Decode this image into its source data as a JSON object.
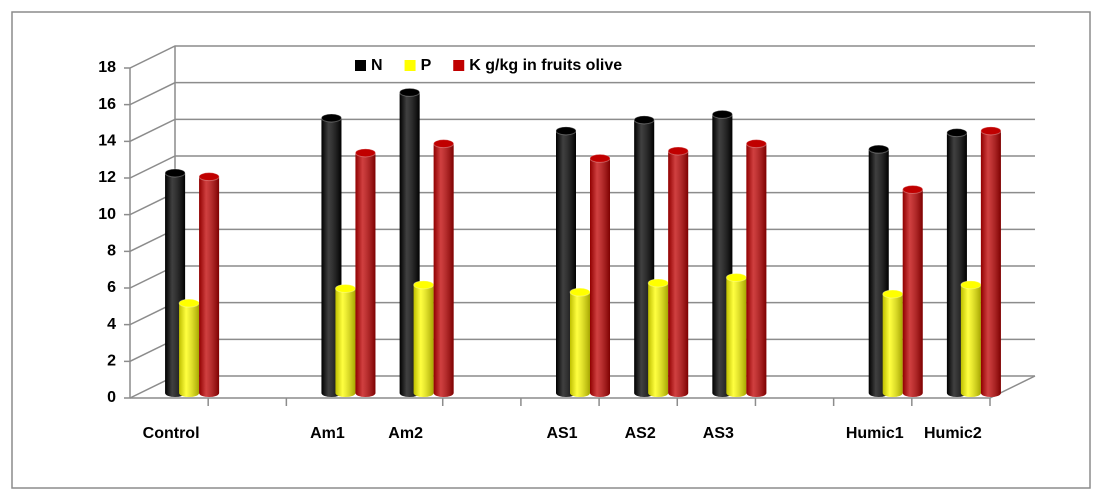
{
  "chart_data": {
    "type": "bar3d",
    "categories": [
      "Control",
      null,
      "Am1",
      "Am2",
      null,
      "AS1",
      "AS2",
      "AS3",
      null,
      "Humic1",
      "Humic2"
    ],
    "series": [
      {
        "name": "N",
        "color": "#000000",
        "values": [
          12,
          null,
          15,
          16.4,
          null,
          14.3,
          14.9,
          15.2,
          null,
          13.3,
          14.2
        ]
      },
      {
        "name": "P",
        "color": "#ffff00",
        "values": [
          4.9,
          null,
          5.7,
          5.9,
          null,
          5.5,
          6.0,
          6.3,
          null,
          5.4,
          5.9
        ]
      },
      {
        "name": "K g/kg in fruits olive",
        "color": "#c00000",
        "values": [
          11.8,
          null,
          13.1,
          13.6,
          null,
          12.8,
          13.2,
          13.6,
          null,
          11.1,
          14.3
        ]
      }
    ],
    "ylim": [
      0,
      18
    ],
    "yticks": [
      0,
      2,
      4,
      6,
      8,
      10,
      12,
      14,
      16,
      18
    ],
    "grid": true
  }
}
